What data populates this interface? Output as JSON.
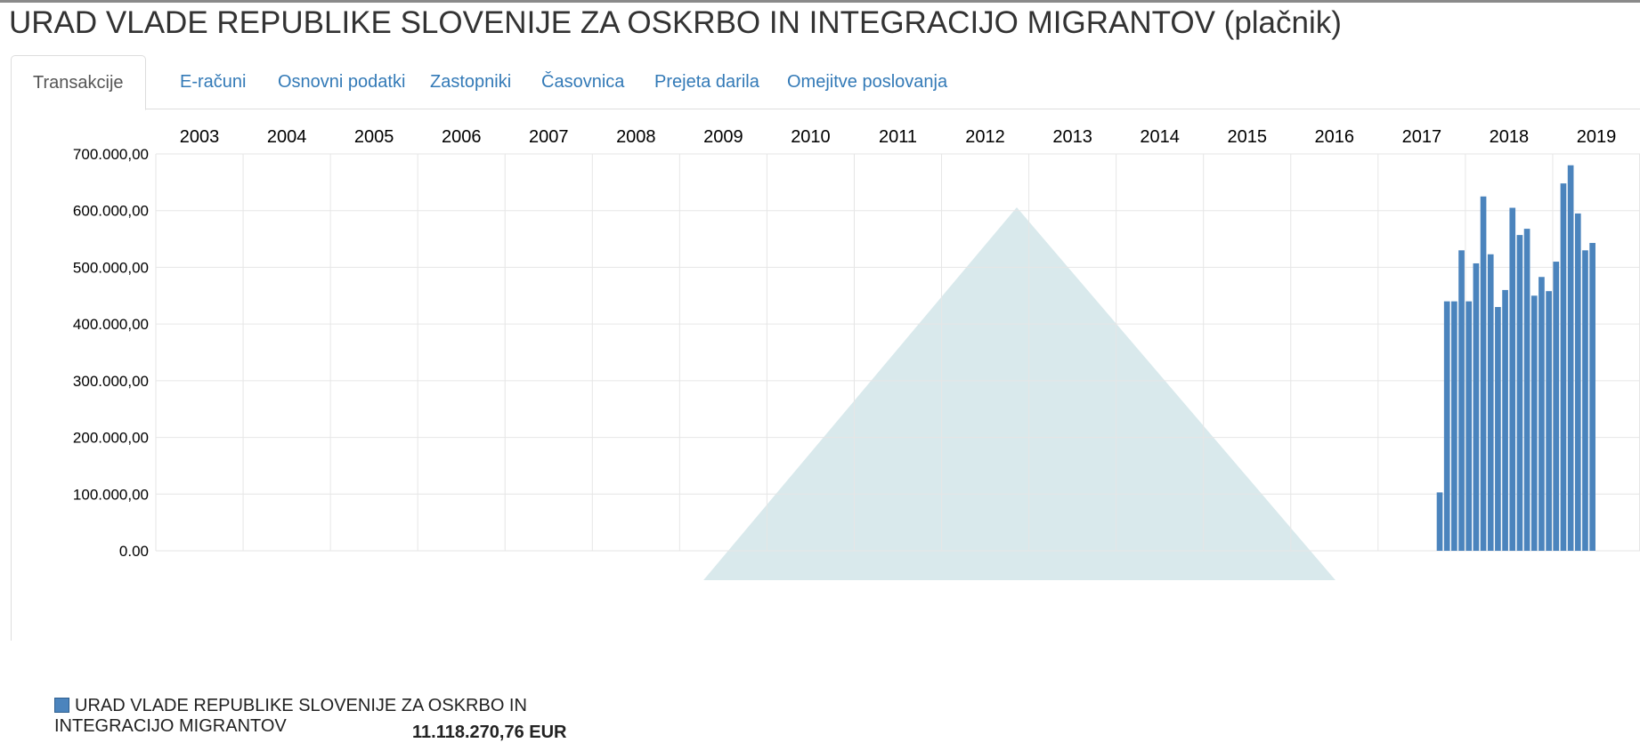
{
  "page": {
    "title": "URAD VLADE REPUBLIKE SLOVENIJE ZA OSKRBO IN INTEGRACIJO MIGRANTOV (plačnik)"
  },
  "tabs": [
    {
      "label": "Transakcije",
      "active": true
    },
    {
      "label": "E-računi",
      "active": false
    },
    {
      "label": "Osnovni podatki",
      "active": false
    },
    {
      "label": "Zastopniki",
      "active": false
    },
    {
      "label": "Časovnica",
      "active": false
    },
    {
      "label": "Prejeta darila",
      "active": false
    },
    {
      "label": "Omejitve poslovanja",
      "active": false
    }
  ],
  "colors": {
    "bar": "#4b84bd",
    "tab_link": "#337ab7",
    "grid": "#e6e6e6",
    "watermark": "#d9e9ec"
  },
  "legend": {
    "name": "URAD VLADE REPUBLIKE SLOVENIJE ZA OSKRBO IN INTEGRACIJO MIGRANTOV",
    "total": "11.118.270,76 EUR"
  },
  "chart_data": {
    "type": "bar",
    "title": "",
    "xlabel": "",
    "ylabel": "",
    "x_axis_position": "top",
    "x_tick_labels": [
      "2003",
      "2004",
      "2005",
      "2006",
      "2007",
      "2008",
      "2009",
      "2010",
      "2011",
      "2012",
      "2013",
      "2014",
      "2015",
      "2016",
      "2017",
      "2018",
      "2019"
    ],
    "y_tick_labels": [
      "700.000,00",
      "600.000,00",
      "500.000,00",
      "400.000,00",
      "300.000,00",
      "200.000,00",
      "100.000,00",
      "0.00"
    ],
    "ylim": [
      0,
      700000
    ],
    "grid": true,
    "watermark": "large pale teal triangle behind the plot",
    "legend_position": "bottom-left",
    "series": [
      {
        "name": "URAD VLADE REPUBLIKE SLOVENIJE ZA OSKRBO IN INTEGRACIJO MIGRANTOV",
        "x": [
          "2017-09",
          "2017-10",
          "2017-11",
          "2017-12",
          "2018-01",
          "2018-02",
          "2018-03",
          "2018-04",
          "2018-05",
          "2018-06",
          "2018-07",
          "2018-08",
          "2018-09",
          "2018-10",
          "2018-11",
          "2018-12",
          "2019-01",
          "2019-02",
          "2019-03",
          "2019-04",
          "2019-05",
          "2019-06",
          "2019-07",
          "2019-08",
          "2019-09"
        ],
        "values": [
          103000,
          440000,
          440000,
          530000,
          440000,
          507000,
          625000,
          523000,
          430000,
          460000,
          605000,
          557000,
          568000,
          450000,
          483000,
          458000,
          510000,
          648000,
          680000,
          595000,
          530000,
          543000,
          0,
          0,
          0
        ]
      }
    ]
  }
}
